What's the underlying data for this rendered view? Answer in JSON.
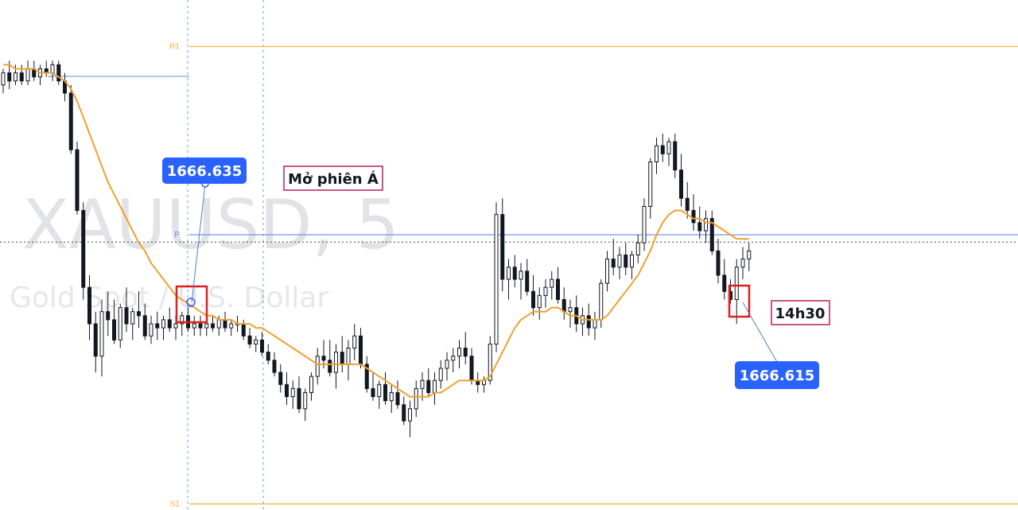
{
  "chart_data": {
    "type": "candlestick",
    "watermark": {
      "symbol_interval": "XAUUSD, 5",
      "description": "Gold Spot / U.S. Dollar"
    },
    "y_range": [
      1660.8,
      1673.4
    ],
    "levels": [
      {
        "name": "R1",
        "value": 1672.25,
        "color": "#f5b041"
      },
      {
        "name": "P",
        "value": 1667.6,
        "color": "#5b8def"
      },
      {
        "name": "S1",
        "value": 1660.95,
        "color": "#f5b041"
      }
    ],
    "current_price_line": 1667.42,
    "colors": {
      "candle": "#131722",
      "ma": "#f0a030",
      "marker": "#e01e1e",
      "callout": "#2962ff",
      "note_border": "#b81e5a",
      "vline": "#6a9fd8"
    },
    "ohlc": [
      [
        1671.3,
        1671.7,
        1671.1,
        1671.6
      ],
      [
        1671.6,
        1671.9,
        1671.2,
        1671.4
      ],
      [
        1671.4,
        1671.8,
        1671.3,
        1671.6
      ],
      [
        1671.6,
        1671.8,
        1671.3,
        1671.4
      ],
      [
        1671.4,
        1671.9,
        1671.3,
        1671.7
      ],
      [
        1671.7,
        1671.9,
        1671.4,
        1671.5
      ],
      [
        1671.5,
        1671.8,
        1671.3,
        1671.7
      ],
      [
        1671.7,
        1671.9,
        1671.5,
        1671.6
      ],
      [
        1671.6,
        1671.9,
        1671.4,
        1671.8
      ],
      [
        1671.8,
        1671.9,
        1671.3,
        1671.4
      ],
      [
        1671.4,
        1671.6,
        1670.9,
        1671.1
      ],
      [
        1671.1,
        1671.3,
        1669.6,
        1669.7
      ],
      [
        1669.7,
        1669.9,
        1668.1,
        1668.2
      ],
      [
        1668.2,
        1668.4,
        1666.0,
        1666.3
      ],
      [
        1666.3,
        1666.6,
        1665.0,
        1665.4
      ],
      [
        1665.4,
        1665.7,
        1664.2,
        1664.6
      ],
      [
        1664.6,
        1666.0,
        1664.1,
        1665.7
      ],
      [
        1665.7,
        1666.2,
        1665.1,
        1665.5
      ],
      [
        1665.5,
        1666.0,
        1664.9,
        1665.0
      ],
      [
        1665.0,
        1665.9,
        1664.8,
        1665.8
      ],
      [
        1665.8,
        1666.3,
        1665.2,
        1665.4
      ],
      [
        1665.4,
        1665.8,
        1665.0,
        1665.7
      ],
      [
        1665.7,
        1666.2,
        1665.3,
        1665.6
      ],
      [
        1665.6,
        1665.9,
        1665.0,
        1665.1
      ],
      [
        1665.1,
        1665.6,
        1664.9,
        1665.4
      ],
      [
        1665.4,
        1665.7,
        1665.0,
        1665.3
      ],
      [
        1665.3,
        1665.6,
        1665.0,
        1665.5
      ],
      [
        1665.5,
        1665.8,
        1665.2,
        1665.3
      ],
      [
        1665.3,
        1665.6,
        1665.0,
        1665.4
      ],
      [
        1665.4,
        1665.7,
        1665.1,
        1665.6
      ],
      [
        1665.6,
        1665.8,
        1665.2,
        1665.3
      ],
      [
        1665.3,
        1665.6,
        1665.1,
        1665.4
      ],
      [
        1665.4,
        1665.6,
        1665.1,
        1665.3
      ],
      [
        1665.3,
        1665.6,
        1665.1,
        1665.4
      ],
      [
        1665.4,
        1665.6,
        1665.2,
        1665.3
      ],
      [
        1665.3,
        1665.6,
        1665.1,
        1665.5
      ],
      [
        1665.5,
        1665.7,
        1665.2,
        1665.3
      ],
      [
        1665.3,
        1665.5,
        1665.1,
        1665.4
      ],
      [
        1665.4,
        1665.6,
        1665.2,
        1665.4
      ],
      [
        1665.4,
        1665.5,
        1665.0,
        1665.1
      ],
      [
        1665.1,
        1665.3,
        1664.8,
        1664.9
      ],
      [
        1664.9,
        1665.1,
        1664.7,
        1665.0
      ],
      [
        1665.0,
        1665.2,
        1664.6,
        1664.7
      ],
      [
        1664.7,
        1664.9,
        1664.4,
        1664.5
      ],
      [
        1664.5,
        1664.7,
        1664.1,
        1664.2
      ],
      [
        1664.2,
        1664.4,
        1663.7,
        1663.9
      ],
      [
        1663.9,
        1664.2,
        1663.4,
        1663.6
      ],
      [
        1663.6,
        1664.0,
        1663.3,
        1663.8
      ],
      [
        1663.8,
        1664.1,
        1663.2,
        1663.3
      ],
      [
        1663.3,
        1663.8,
        1663.0,
        1663.7
      ],
      [
        1663.7,
        1664.2,
        1663.5,
        1664.1
      ],
      [
        1664.1,
        1664.8,
        1663.9,
        1664.6
      ],
      [
        1664.6,
        1665.0,
        1664.3,
        1664.5
      ],
      [
        1664.5,
        1665.0,
        1664.1,
        1664.2
      ],
      [
        1664.2,
        1664.9,
        1663.8,
        1664.7
      ],
      [
        1664.7,
        1665.1,
        1664.2,
        1664.4
      ],
      [
        1664.4,
        1665.0,
        1664.0,
        1664.8
      ],
      [
        1664.8,
        1665.4,
        1664.5,
        1665.1
      ],
      [
        1665.1,
        1665.3,
        1664.3,
        1664.4
      ],
      [
        1664.4,
        1664.6,
        1663.7,
        1663.8
      ],
      [
        1663.8,
        1664.2,
        1663.5,
        1663.6
      ],
      [
        1663.6,
        1664.0,
        1663.3,
        1663.9
      ],
      [
        1663.9,
        1664.2,
        1663.4,
        1663.5
      ],
      [
        1663.5,
        1663.9,
        1663.2,
        1663.7
      ],
      [
        1663.7,
        1664.0,
        1663.3,
        1663.4
      ],
      [
        1663.4,
        1663.6,
        1662.9,
        1663.0
      ],
      [
        1663.0,
        1663.5,
        1662.6,
        1663.3
      ],
      [
        1663.3,
        1664.0,
        1663.1,
        1663.8
      ],
      [
        1663.8,
        1664.2,
        1663.5,
        1664.0
      ],
      [
        1664.0,
        1664.3,
        1663.6,
        1663.7
      ],
      [
        1663.7,
        1664.2,
        1663.4,
        1664.0
      ],
      [
        1664.0,
        1664.5,
        1663.8,
        1664.3
      ],
      [
        1664.3,
        1664.7,
        1664.0,
        1664.5
      ],
      [
        1664.5,
        1664.8,
        1664.2,
        1664.6
      ],
      [
        1664.6,
        1665.0,
        1664.3,
        1664.8
      ],
      [
        1664.8,
        1665.2,
        1664.4,
        1664.6
      ],
      [
        1664.6,
        1664.8,
        1663.9,
        1664.0
      ],
      [
        1664.0,
        1664.2,
        1663.7,
        1663.9
      ],
      [
        1663.9,
        1664.1,
        1663.7,
        1664.0
      ],
      [
        1664.0,
        1665.1,
        1663.9,
        1664.9
      ],
      [
        1664.9,
        1668.4,
        1664.7,
        1668.1
      ],
      [
        1668.1,
        1668.5,
        1666.2,
        1666.5
      ],
      [
        1666.5,
        1667.0,
        1666.0,
        1666.8
      ],
      [
        1666.8,
        1667.1,
        1666.3,
        1666.5
      ],
      [
        1666.5,
        1666.9,
        1666.0,
        1666.7
      ],
      [
        1666.7,
        1667.0,
        1666.1,
        1666.2
      ],
      [
        1666.2,
        1666.6,
        1665.6,
        1665.8
      ],
      [
        1665.8,
        1666.3,
        1665.5,
        1666.1
      ],
      [
        1666.1,
        1666.5,
        1665.8,
        1666.3
      ],
      [
        1666.3,
        1666.7,
        1666.0,
        1666.5
      ],
      [
        1666.5,
        1666.8,
        1665.9,
        1666.0
      ],
      [
        1666.0,
        1666.3,
        1665.5,
        1665.7
      ],
      [
        1665.7,
        1666.0,
        1665.3,
        1665.8
      ],
      [
        1665.8,
        1666.1,
        1665.2,
        1665.4
      ],
      [
        1665.4,
        1665.8,
        1665.1,
        1665.6
      ],
      [
        1665.6,
        1665.9,
        1665.1,
        1665.3
      ],
      [
        1665.3,
        1665.7,
        1665.0,
        1665.5
      ],
      [
        1665.5,
        1666.5,
        1665.3,
        1666.4
      ],
      [
        1666.4,
        1667.2,
        1666.2,
        1667.0
      ],
      [
        1667.0,
        1667.5,
        1666.6,
        1666.8
      ],
      [
        1666.8,
        1667.3,
        1666.5,
        1667.1
      ],
      [
        1667.1,
        1667.4,
        1666.6,
        1666.8
      ],
      [
        1666.8,
        1667.2,
        1666.5,
        1667.1
      ],
      [
        1667.1,
        1667.6,
        1666.9,
        1667.4
      ],
      [
        1667.4,
        1668.5,
        1667.2,
        1668.3
      ],
      [
        1668.3,
        1669.5,
        1668.0,
        1669.4
      ],
      [
        1669.4,
        1670.0,
        1669.1,
        1669.8
      ],
      [
        1669.8,
        1670.1,
        1669.4,
        1669.6
      ],
      [
        1669.6,
        1670.0,
        1669.3,
        1669.9
      ],
      [
        1669.9,
        1670.1,
        1669.0,
        1669.2
      ],
      [
        1669.2,
        1669.6,
        1668.3,
        1668.5
      ],
      [
        1668.5,
        1668.9,
        1668.0,
        1668.2
      ],
      [
        1668.2,
        1668.6,
        1667.7,
        1667.9
      ],
      [
        1667.9,
        1668.3,
        1667.5,
        1667.7
      ],
      [
        1667.7,
        1668.2,
        1667.4,
        1668.0
      ],
      [
        1668.0,
        1668.2,
        1667.1,
        1667.2
      ],
      [
        1667.2,
        1667.5,
        1666.4,
        1666.6
      ],
      [
        1666.6,
        1667.0,
        1666.0,
        1666.2
      ],
      [
        1666.2,
        1666.5,
        1665.9,
        1666.0
      ],
      [
        1666.0,
        1667.0,
        1665.4,
        1666.8
      ],
      [
        1666.8,
        1667.3,
        1666.5,
        1667.0
      ],
      [
        1667.0,
        1667.4,
        1666.7,
        1667.2
      ]
    ],
    "ma": [
      1671.8,
      1671.8,
      1671.7,
      1671.7,
      1671.7,
      1671.7,
      1671.6,
      1671.6,
      1671.6,
      1671.5,
      1671.4,
      1671.2,
      1670.9,
      1670.5,
      1670.1,
      1669.7,
      1669.3,
      1668.9,
      1668.6,
      1668.3,
      1668.0,
      1667.7,
      1667.4,
      1667.2,
      1666.9,
      1666.7,
      1666.5,
      1666.3,
      1666.1,
      1666.0,
      1665.9,
      1665.8,
      1665.7,
      1665.6,
      1665.6,
      1665.5,
      1665.5,
      1665.5,
      1665.4,
      1665.4,
      1665.4,
      1665.3,
      1665.3,
      1665.2,
      1665.1,
      1665.0,
      1664.9,
      1664.8,
      1664.7,
      1664.6,
      1664.5,
      1664.4,
      1664.4,
      1664.4,
      1664.4,
      1664.4,
      1664.4,
      1664.4,
      1664.4,
      1664.3,
      1664.2,
      1664.1,
      1664.0,
      1663.9,
      1663.8,
      1663.7,
      1663.6,
      1663.6,
      1663.6,
      1663.6,
      1663.7,
      1663.7,
      1663.8,
      1663.9,
      1664.0,
      1664.0,
      1664.0,
      1664.0,
      1664.0,
      1664.1,
      1664.4,
      1664.7,
      1665.0,
      1665.3,
      1665.5,
      1665.6,
      1665.7,
      1665.7,
      1665.7,
      1665.8,
      1665.8,
      1665.7,
      1665.6,
      1665.6,
      1665.5,
      1665.5,
      1665.5,
      1665.5,
      1665.6,
      1665.8,
      1666.0,
      1666.2,
      1666.4,
      1666.6,
      1666.9,
      1667.2,
      1667.6,
      1667.9,
      1668.1,
      1668.2,
      1668.2,
      1668.1,
      1668.0,
      1668.0,
      1667.9,
      1667.9,
      1667.8,
      1667.7,
      1667.6,
      1667.5,
      1667.5,
      1667.5
    ],
    "annotations": {
      "left_price": "1666.635",
      "right_price": "1666.615",
      "session_note": "Mở phiên Á",
      "time_note": "14h30"
    }
  }
}
